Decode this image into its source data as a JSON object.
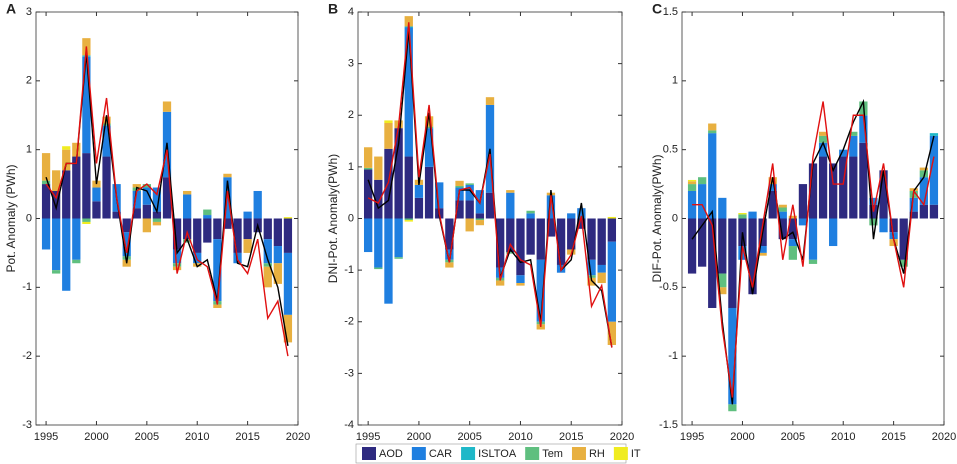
{
  "chart_data": [
    {
      "type": "bar",
      "panel_label": "A",
      "ylabel": "Pot. Anomaly (PWh)",
      "x": [
        1995,
        1996,
        1997,
        1998,
        1999,
        2000,
        2001,
        2002,
        2003,
        2004,
        2005,
        2006,
        2007,
        2008,
        2009,
        2010,
        2011,
        2012,
        2013,
        2014,
        2015,
        2016,
        2017,
        2018,
        2019
      ],
      "xlim": [
        1994,
        2020
      ],
      "xticks": [
        1995,
        2000,
        2005,
        2010,
        2015,
        2020
      ],
      "ylim": [
        -3,
        3
      ],
      "yticks": [
        -3,
        -2,
        -1,
        0,
        1,
        2,
        3
      ],
      "series": [
        {
          "name": "AOD",
          "color": "#2e2a80",
          "values": [
            0.5,
            0.4,
            0.7,
            0.9,
            0.95,
            0.25,
            0.9,
            0.1,
            -0.2,
            0.15,
            0.2,
            0.1,
            0.6,
            -0.45,
            -0.3,
            -0.5,
            -0.35,
            -0.3,
            -0.15,
            -0.5,
            -0.3,
            -0.2,
            -0.3,
            -0.4,
            -0.5
          ]
        },
        {
          "name": "CAR",
          "color": "#1f7fe0",
          "values": [
            -0.45,
            -0.75,
            -1.05,
            -0.6,
            1.4,
            0.2,
            0.45,
            0.4,
            -0.35,
            0.25,
            0.25,
            0.35,
            0.95,
            -0.2,
            0.35,
            -0.15,
            0.05,
            -0.9,
            0.6,
            -0.15,
            0.1,
            0.4,
            -0.35,
            -0.25,
            -0.9
          ]
        },
        {
          "name": "ISLTOA",
          "color": "#1fb8c8",
          "values": [
            0,
            0,
            0,
            0,
            0.02,
            0,
            0,
            0,
            0,
            0,
            0,
            0,
            0,
            0,
            0,
            0,
            0,
            0,
            0,
            0,
            0,
            0,
            0,
            0,
            0
          ]
        },
        {
          "name": "Tem",
          "color": "#5fbf7f",
          "values": [
            0.05,
            -0.05,
            0,
            -0.05,
            -0.05,
            0,
            0.03,
            0,
            -0.05,
            0.05,
            0.05,
            -0.05,
            0,
            -0.05,
            -0.05,
            0,
            0.08,
            -0.05,
            0,
            0,
            0,
            0,
            -0.05,
            0,
            0
          ]
        },
        {
          "name": "RH",
          "color": "#e8b040",
          "values": [
            0.4,
            0.3,
            0.3,
            0.2,
            0.25,
            0.1,
            0.1,
            0,
            -0.1,
            0.05,
            -0.2,
            -0.05,
            0.15,
            -0.05,
            0.05,
            -0.05,
            0,
            -0.05,
            0.05,
            0,
            -0.2,
            0,
            -0.3,
            -0.3,
            -0.4
          ]
        },
        {
          "name": "IT",
          "color": "#f0ec20",
          "values": [
            0,
            0,
            0.05,
            0,
            -0.03,
            0,
            0,
            0,
            0,
            0,
            0,
            0,
            0,
            0,
            0,
            0,
            0,
            0,
            0,
            0,
            0,
            0,
            0,
            0,
            0.02
          ]
        }
      ],
      "lines": [
        {
          "color": "#000000",
          "values": [
            0.6,
            0.15,
            0.8,
            0.8,
            2.4,
            0.5,
            1.5,
            0.3,
            -0.65,
            0.45,
            0.4,
            0.1,
            1.1,
            -0.5,
            -0.3,
            -0.7,
            -0.6,
            -1.2,
            0.55,
            -0.65,
            -0.7,
            -0.1,
            -0.6,
            -1.0,
            -1.85
          ]
        },
        {
          "color": "#e01010",
          "values": [
            0.5,
            0.3,
            0.8,
            0.8,
            2.5,
            0.8,
            1.75,
            0.3,
            -0.5,
            0.4,
            0.5,
            0.35,
            1.0,
            -0.8,
            -0.2,
            -0.6,
            -0.7,
            -1.25,
            0.4,
            -0.6,
            -0.8,
            -0.3,
            -1.45,
            -1.2,
            -2.0
          ]
        }
      ]
    },
    {
      "type": "bar",
      "panel_label": "B",
      "ylabel": "DNI-Pot. Anomaly(PWh)",
      "x": [
        1995,
        1996,
        1997,
        1998,
        1999,
        2000,
        2001,
        2002,
        2003,
        2004,
        2005,
        2006,
        2007,
        2008,
        2009,
        2010,
        2011,
        2012,
        2013,
        2014,
        2015,
        2016,
        2017,
        2018,
        2019
      ],
      "xlim": [
        1994,
        2020
      ],
      "xticks": [
        1995,
        2000,
        2005,
        2010,
        2015,
        2020
      ],
      "ylim": [
        -4,
        4
      ],
      "yticks": [
        -4,
        -3,
        -2,
        -1,
        0,
        1,
        2,
        3,
        4
      ],
      "series": [
        {
          "name": "AOD",
          "color": "#2e2a80",
          "values": [
            0.95,
            0.75,
            1.35,
            1.75,
            1.2,
            0.4,
            1.0,
            0.2,
            -0.6,
            0.35,
            0.35,
            0.1,
            0.5,
            -0.95,
            -0.65,
            -1.1,
            -0.7,
            -0.8,
            -0.35,
            -0.9,
            -0.6,
            -0.2,
            -0.8,
            -0.9,
            -0.45
          ]
        },
        {
          "name": "CAR",
          "color": "#1f7fe0",
          "values": [
            -0.65,
            -0.95,
            -1.65,
            -0.75,
            2.5,
            0.25,
            0.75,
            0.5,
            -0.2,
            0.25,
            0.3,
            0.45,
            1.7,
            -0.2,
            0.5,
            -0.15,
            0.1,
            -1.2,
            0.45,
            -0.15,
            0.1,
            0.2,
            -0.3,
            -0.15,
            -1.55
          ]
        },
        {
          "name": "ISLTOA",
          "color": "#1fb8c8",
          "values": [
            0,
            0,
            0,
            0,
            0.02,
            0,
            0,
            0,
            0,
            0,
            0,
            0,
            0,
            0,
            0,
            0,
            0,
            0,
            0,
            0,
            0,
            0,
            0,
            0,
            0
          ]
        },
        {
          "name": "Tem",
          "color": "#5fbf7f",
          "values": [
            0.03,
            -0.03,
            0,
            -0.03,
            -0.03,
            0,
            0.03,
            0,
            -0.05,
            0.03,
            0.03,
            -0.03,
            0,
            -0.05,
            -0.03,
            0,
            0.05,
            -0.05,
            0,
            0,
            0,
            0,
            -0.05,
            0,
            0
          ]
        },
        {
          "name": "RH",
          "color": "#e8b040",
          "values": [
            0.4,
            0.45,
            0.5,
            0.15,
            0.2,
            0.1,
            0.2,
            0,
            -0.1,
            0.1,
            -0.25,
            -0.1,
            0.15,
            -0.1,
            0.05,
            -0.05,
            0,
            -0.1,
            0.05,
            0,
            -0.1,
            0,
            -0.15,
            -0.2,
            -0.45
          ]
        },
        {
          "name": "IT",
          "color": "#f0ec20",
          "values": [
            0,
            0,
            0.05,
            0,
            -0.03,
            0,
            0,
            0,
            0,
            0,
            0,
            0,
            0,
            0,
            0,
            0,
            0,
            0,
            0,
            0,
            0,
            0,
            0,
            0,
            0.03
          ]
        }
      ],
      "lines": [
        {
          "color": "#000000",
          "values": [
            0.75,
            0.2,
            0.35,
            1.45,
            3.65,
            0.65,
            2.05,
            0.05,
            -0.85,
            0.55,
            0.55,
            0.3,
            1.35,
            -1.15,
            -0.6,
            -0.85,
            -0.8,
            -2.0,
            0.55,
            -1.0,
            -0.8,
            0.3,
            -1.2,
            -1.4,
            -2.5
          ]
        },
        {
          "color": "#e01010",
          "values": [
            0.4,
            0.3,
            0.7,
            1.8,
            3.8,
            0.8,
            2.2,
            0.1,
            -0.85,
            0.55,
            0.6,
            0.3,
            1.25,
            -1.2,
            -0.5,
            -0.8,
            -0.9,
            -2.1,
            0.45,
            -1.0,
            -0.7,
            0.05,
            -1.7,
            -1.3,
            -2.5
          ]
        }
      ]
    },
    {
      "type": "bar",
      "panel_label": "C",
      "ylabel": "DIF-Pot. Anomaly(PWh)",
      "x": [
        1995,
        1996,
        1997,
        1998,
        1999,
        2000,
        2001,
        2002,
        2003,
        2004,
        2005,
        2006,
        2007,
        2008,
        2009,
        2010,
        2011,
        2012,
        2013,
        2014,
        2015,
        2016,
        2017,
        2018,
        2019
      ],
      "xlim": [
        1994,
        2020
      ],
      "xticks": [
        1995,
        2000,
        2005,
        2010,
        2015,
        2020
      ],
      "ylim": [
        -1.5,
        1.5
      ],
      "yticks": [
        -1.5,
        -1,
        -0.5,
        0,
        0.5,
        1,
        1.5
      ],
      "series": [
        {
          "name": "AOD",
          "color": "#2e2a80",
          "values": [
            -0.4,
            -0.35,
            -0.65,
            -0.4,
            -0.65,
            -0.2,
            -0.55,
            -0.2,
            0.2,
            -0.15,
            -0.15,
            0.25,
            0.4,
            0.45,
            0.4,
            0.45,
            0.45,
            0.55,
            0.1,
            0.35,
            -0.1,
            -0.3,
            0.05,
            0.1,
            0.1
          ]
        },
        {
          "name": "CAR",
          "color": "#1f7fe0",
          "values": [
            0.2,
            0.25,
            0.62,
            0.15,
            -0.7,
            -0.1,
            0.05,
            -0.05,
            0.05,
            0.05,
            -0.05,
            -0.05,
            -0.3,
            0.1,
            -0.2,
            0.05,
            0.15,
            0.2,
            0.05,
            -0.1,
            -0.05,
            0,
            0.1,
            0.2,
            0.5
          ]
        },
        {
          "name": "ISLTOA",
          "color": "#1fb8c8",
          "values": [
            0,
            0,
            0,
            0,
            0,
            0,
            0,
            0,
            0,
            0,
            0,
            0,
            0,
            0,
            0,
            0,
            0,
            0,
            0,
            0,
            0,
            0,
            0,
            0,
            0.02
          ]
        },
        {
          "name": "Tem",
          "color": "#5fbf7f",
          "values": [
            0.05,
            0.05,
            0.02,
            -0.1,
            -0.05,
            0.03,
            0,
            0,
            0,
            0.03,
            -0.1,
            0,
            -0.03,
            0.05,
            0,
            0,
            0.03,
            0.1,
            -0.05,
            0,
            0,
            -0.05,
            0.05,
            0.05,
            0
          ]
        },
        {
          "name": "RH",
          "color": "#e8b040",
          "values": [
            0.02,
            0,
            0.05,
            -0.05,
            0,
            0,
            0,
            -0.02,
            0.05,
            0.02,
            0.02,
            0,
            0,
            0.03,
            0,
            0,
            0,
            0,
            0,
            0,
            -0.05,
            0,
            0.02,
            0.02,
            0
          ]
        },
        {
          "name": "IT",
          "color": "#f0ec20",
          "values": [
            0.01,
            0,
            0,
            0,
            0,
            0.01,
            0,
            0,
            0,
            0,
            0,
            0,
            0,
            0,
            0,
            0,
            0,
            0,
            0,
            0,
            0,
            0,
            0,
            0,
            0
          ]
        }
      ],
      "lines": [
        {
          "color": "#000000",
          "values": [
            -0.15,
            -0.05,
            0.05,
            -0.75,
            -1.35,
            -0.1,
            -0.55,
            -0.1,
            0.3,
            -0.15,
            -0.1,
            -0.3,
            0.4,
            0.55,
            0.35,
            0.5,
            0.7,
            0.85,
            -0.15,
            0.35,
            -0.15,
            -0.4,
            0.2,
            0.3,
            0.6
          ]
        },
        {
          "color": "#e01010",
          "values": [
            0.1,
            0.1,
            -0.05,
            -0.8,
            -1.3,
            -0.2,
            -0.5,
            -0.05,
            0.4,
            -0.3,
            0.1,
            -0.35,
            0.45,
            0.85,
            0.25,
            0.25,
            0.75,
            0.75,
            0.05,
            0.4,
            -0.15,
            -0.5,
            0.2,
            0.1,
            0.45
          ]
        }
      ]
    }
  ]
}
